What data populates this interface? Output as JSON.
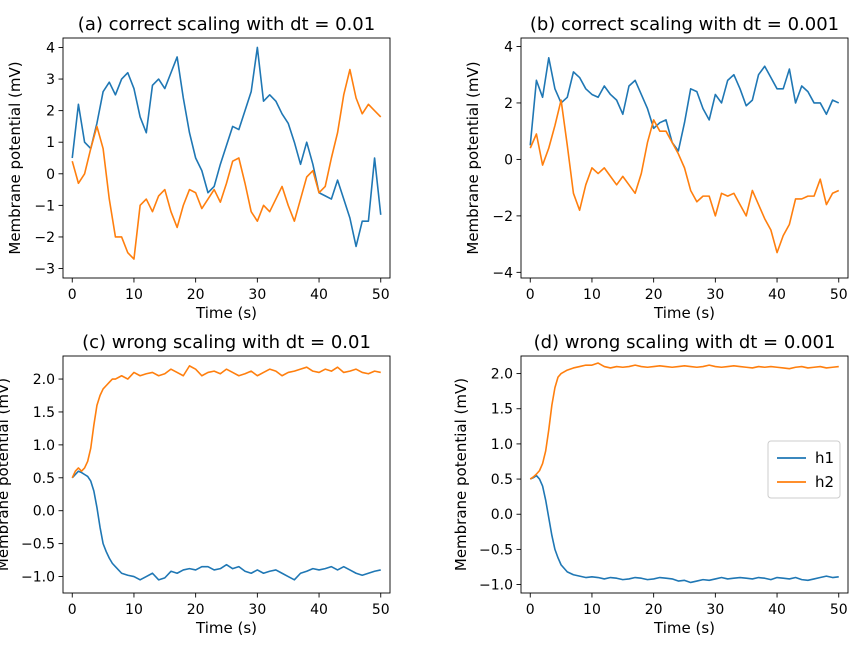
{
  "colors": {
    "h1": "#1f77b4",
    "h2": "#ff7f0e"
  },
  "chart_data": [
    {
      "type": "line",
      "title": "(a) correct scaling with dt = 0.01",
      "xlabel": "Time (s)",
      "ylabel": "Membrane potential (mV)",
      "xlim": [
        -1.5,
        51.5
      ],
      "ylim": [
        -3.3,
        4.3
      ],
      "xticks": [
        0,
        10,
        20,
        30,
        40,
        50
      ],
      "yticks": [
        -3,
        -2,
        -1,
        0,
        1,
        2,
        3,
        4
      ],
      "ytick_labels": [
        "−3",
        "−2",
        "−1",
        "0",
        "1",
        "2",
        "3",
        "4"
      ],
      "legend": null,
      "series": [
        {
          "key": "h1",
          "x": [
            0,
            1,
            2,
            3,
            4,
            5,
            6,
            7,
            8,
            9,
            10,
            11,
            12,
            13,
            14,
            15,
            16,
            17,
            18,
            19,
            20,
            21,
            22,
            23,
            24,
            25,
            26,
            27,
            28,
            29,
            30,
            31,
            32,
            33,
            34,
            35,
            36,
            37,
            38,
            39,
            40,
            41,
            42,
            43,
            44,
            45,
            46,
            47,
            48,
            49,
            50
          ],
          "y": [
            0.5,
            2.2,
            1.0,
            0.8,
            1.6,
            2.6,
            2.9,
            2.5,
            3.0,
            3.2,
            2.7,
            1.8,
            1.3,
            2.8,
            3.0,
            2.7,
            3.2,
            3.7,
            2.4,
            1.3,
            0.5,
            0.1,
            -0.6,
            -0.4,
            0.3,
            0.9,
            1.5,
            1.4,
            2.0,
            2.6,
            4.0,
            2.3,
            2.5,
            2.3,
            1.9,
            1.6,
            1.0,
            0.3,
            1.0,
            0.3,
            -0.6,
            -0.7,
            -0.8,
            -0.2,
            -0.8,
            -1.4,
            -2.3,
            -1.5,
            -1.5,
            0.5,
            -1.3
          ]
        },
        {
          "key": "h2",
          "x": [
            0,
            1,
            2,
            3,
            4,
            5,
            6,
            7,
            8,
            9,
            10,
            11,
            12,
            13,
            14,
            15,
            16,
            17,
            18,
            19,
            20,
            21,
            22,
            23,
            24,
            25,
            26,
            27,
            28,
            29,
            30,
            31,
            32,
            33,
            34,
            35,
            36,
            37,
            38,
            39,
            40,
            41,
            42,
            43,
            44,
            45,
            46,
            47,
            48,
            49,
            50
          ],
          "y": [
            0.4,
            -0.3,
            0.0,
            0.8,
            1.5,
            0.8,
            -0.8,
            -2.0,
            -2.0,
            -2.5,
            -2.7,
            -1.0,
            -0.8,
            -1.2,
            -0.7,
            -0.5,
            -1.2,
            -1.7,
            -1.0,
            -0.5,
            -0.6,
            -1.1,
            -0.8,
            -0.5,
            -0.9,
            -0.3,
            0.4,
            0.5,
            -0.3,
            -1.2,
            -1.5,
            -1.0,
            -1.2,
            -0.8,
            -0.4,
            -1.0,
            -1.5,
            -0.8,
            -0.1,
            0.1,
            -0.6,
            -0.4,
            0.5,
            1.3,
            2.5,
            3.3,
            2.4,
            1.9,
            2.2,
            2.0,
            1.8
          ]
        }
      ]
    },
    {
      "type": "line",
      "title": "(b) correct scaling with dt = 0.001",
      "xlabel": "Time (s)",
      "ylabel": "Membrane potential (mV)",
      "xlim": [
        -1.5,
        51.5
      ],
      "ylim": [
        -4.2,
        4.3
      ],
      "xticks": [
        0,
        10,
        20,
        30,
        40,
        50
      ],
      "yticks": [
        -4,
        -2,
        0,
        2,
        4
      ],
      "ytick_labels": [
        "−4",
        "−2",
        "0",
        "2",
        "4"
      ],
      "legend": null,
      "series": [
        {
          "key": "h1",
          "x": [
            0,
            1,
            2,
            3,
            4,
            5,
            6,
            7,
            8,
            9,
            10,
            11,
            12,
            13,
            14,
            15,
            16,
            17,
            18,
            19,
            20,
            21,
            22,
            23,
            24,
            25,
            26,
            27,
            28,
            29,
            30,
            31,
            32,
            33,
            34,
            35,
            36,
            37,
            38,
            39,
            40,
            41,
            42,
            43,
            44,
            45,
            46,
            47,
            48,
            49,
            50
          ],
          "y": [
            0.5,
            2.8,
            2.2,
            3.6,
            2.5,
            2.0,
            2.2,
            3.1,
            2.9,
            2.5,
            2.3,
            2.2,
            2.6,
            2.3,
            2.1,
            1.6,
            2.6,
            2.8,
            2.3,
            1.8,
            1.1,
            1.3,
            1.4,
            0.6,
            0.3,
            1.3,
            2.5,
            2.4,
            1.8,
            1.4,
            2.3,
            2.0,
            2.8,
            3.0,
            2.5,
            1.9,
            2.1,
            3.0,
            3.3,
            2.9,
            2.5,
            2.5,
            3.2,
            2.0,
            2.6,
            2.4,
            2.0,
            2.0,
            1.6,
            2.1,
            2.0
          ]
        },
        {
          "key": "h2",
          "x": [
            0,
            1,
            2,
            3,
            4,
            5,
            6,
            7,
            8,
            9,
            10,
            11,
            12,
            13,
            14,
            15,
            16,
            17,
            18,
            19,
            20,
            21,
            22,
            23,
            24,
            25,
            26,
            27,
            28,
            29,
            30,
            31,
            32,
            33,
            34,
            35,
            36,
            37,
            38,
            39,
            40,
            41,
            42,
            43,
            44,
            45,
            46,
            47,
            48,
            49,
            50
          ],
          "y": [
            0.4,
            0.9,
            -0.2,
            0.4,
            1.2,
            2.1,
            0.5,
            -1.2,
            -1.8,
            -0.9,
            -0.3,
            -0.5,
            -0.3,
            -0.6,
            -0.9,
            -0.6,
            -0.9,
            -1.2,
            -0.5,
            0.6,
            1.4,
            1.0,
            1.0,
            0.6,
            0.2,
            -0.3,
            -1.1,
            -1.5,
            -1.3,
            -1.3,
            -2.0,
            -1.2,
            -1.3,
            -1.2,
            -1.6,
            -2.0,
            -1.1,
            -1.6,
            -2.1,
            -2.5,
            -3.3,
            -2.7,
            -2.3,
            -1.4,
            -1.4,
            -1.3,
            -1.3,
            -0.7,
            -1.6,
            -1.2,
            -1.1
          ]
        }
      ]
    },
    {
      "type": "line",
      "title": "(c) wrong scaling with dt = 0.01",
      "xlabel": "Time (s)",
      "ylabel": "Membrane potential (mV)",
      "xlim": [
        -1.5,
        51.5
      ],
      "ylim": [
        -1.25,
        2.35
      ],
      "xticks": [
        0,
        10,
        20,
        30,
        40,
        50
      ],
      "yticks": [
        -1.0,
        -0.5,
        0.0,
        0.5,
        1.0,
        1.5,
        2.0
      ],
      "ytick_labels": [
        "−1.0",
        "−0.5",
        "0.0",
        "0.5",
        "1.0",
        "1.5",
        "2.0"
      ],
      "legend": null,
      "series": [
        {
          "key": "h1",
          "x": [
            0,
            0.5,
            1,
            1.5,
            2,
            2.5,
            3,
            3.5,
            4,
            4.5,
            5,
            5.5,
            6,
            6.5,
            7,
            8,
            9,
            10,
            11,
            12,
            13,
            14,
            15,
            16,
            17,
            18,
            19,
            20,
            21,
            22,
            23,
            24,
            25,
            26,
            27,
            28,
            29,
            30,
            31,
            32,
            33,
            34,
            35,
            36,
            37,
            38,
            39,
            40,
            41,
            42,
            43,
            44,
            45,
            46,
            47,
            48,
            49,
            50
          ],
          "y": [
            0.5,
            0.55,
            0.6,
            0.58,
            0.55,
            0.52,
            0.45,
            0.3,
            0.05,
            -0.25,
            -0.5,
            -0.62,
            -0.72,
            -0.8,
            -0.85,
            -0.95,
            -0.98,
            -1.0,
            -1.05,
            -1.0,
            -0.95,
            -1.05,
            -1.02,
            -0.92,
            -0.95,
            -0.9,
            -0.88,
            -0.9,
            -0.85,
            -0.85,
            -0.9,
            -0.88,
            -0.82,
            -0.88,
            -0.85,
            -0.92,
            -0.95,
            -0.9,
            -0.95,
            -0.92,
            -0.9,
            -0.95,
            -1.0,
            -1.05,
            -0.95,
            -0.92,
            -0.88,
            -0.9,
            -0.88,
            -0.85,
            -0.9,
            -0.85,
            -0.9,
            -0.95,
            -0.98,
            -0.95,
            -0.92,
            -0.9
          ]
        },
        {
          "key": "h2",
          "x": [
            0,
            0.5,
            1,
            1.5,
            2,
            2.5,
            3,
            3.5,
            4,
            4.5,
            5,
            5.5,
            6,
            6.5,
            7,
            8,
            9,
            10,
            11,
            12,
            13,
            14,
            15,
            16,
            17,
            18,
            19,
            20,
            21,
            22,
            23,
            24,
            25,
            26,
            27,
            28,
            29,
            30,
            31,
            32,
            33,
            34,
            35,
            36,
            37,
            38,
            39,
            40,
            41,
            42,
            43,
            44,
            45,
            46,
            47,
            48,
            49,
            50
          ],
          "y": [
            0.5,
            0.6,
            0.65,
            0.6,
            0.65,
            0.75,
            0.95,
            1.3,
            1.6,
            1.75,
            1.85,
            1.9,
            1.95,
            2.0,
            2.0,
            2.05,
            2.0,
            2.1,
            2.05,
            2.08,
            2.1,
            2.05,
            2.08,
            2.15,
            2.1,
            2.05,
            2.2,
            2.15,
            2.05,
            2.1,
            2.12,
            2.08,
            2.15,
            2.1,
            2.05,
            2.08,
            2.12,
            2.05,
            2.1,
            2.15,
            2.12,
            2.05,
            2.1,
            2.12,
            2.15,
            2.18,
            2.12,
            2.1,
            2.15,
            2.12,
            2.18,
            2.1,
            2.12,
            2.15,
            2.1,
            2.08,
            2.12,
            2.1
          ]
        }
      ]
    },
    {
      "type": "line",
      "title": "(d) wrong scaling with dt = 0.001",
      "xlabel": "Time (s)",
      "ylabel": "Membrane potential (mV)",
      "xlim": [
        -1.5,
        51.5
      ],
      "ylim": [
        -1.12,
        2.25
      ],
      "xticks": [
        0,
        10,
        20,
        30,
        40,
        50
      ],
      "yticks": [
        -1.0,
        -0.5,
        0.0,
        0.5,
        1.0,
        1.5,
        2.0
      ],
      "ytick_labels": [
        "−1.0",
        "−0.5",
        "0.0",
        "0.5",
        "1.0",
        "1.5",
        "2.0"
      ],
      "legend": {
        "location": "center right",
        "entries": [
          {
            "key": "h1",
            "label": "h1"
          },
          {
            "key": "h2",
            "label": "h2"
          }
        ]
      },
      "series": [
        {
          "key": "h1",
          "x": [
            0,
            0.5,
            1,
            1.5,
            2,
            2.5,
            3,
            3.5,
            4,
            4.5,
            5,
            6,
            7,
            8,
            9,
            10,
            11,
            12,
            13,
            14,
            15,
            16,
            17,
            18,
            19,
            20,
            21,
            22,
            23,
            24,
            25,
            26,
            27,
            28,
            29,
            30,
            31,
            32,
            33,
            34,
            35,
            36,
            37,
            38,
            39,
            40,
            41,
            42,
            43,
            44,
            45,
            46,
            47,
            48,
            49,
            50
          ],
          "y": [
            0.5,
            0.52,
            0.55,
            0.5,
            0.4,
            0.2,
            -0.05,
            -0.3,
            -0.5,
            -0.62,
            -0.72,
            -0.82,
            -0.86,
            -0.88,
            -0.9,
            -0.89,
            -0.9,
            -0.92,
            -0.9,
            -0.91,
            -0.93,
            -0.92,
            -0.9,
            -0.91,
            -0.93,
            -0.92,
            -0.9,
            -0.91,
            -0.92,
            -0.95,
            -0.94,
            -0.97,
            -0.95,
            -0.93,
            -0.94,
            -0.92,
            -0.9,
            -0.92,
            -0.91,
            -0.9,
            -0.91,
            -0.92,
            -0.9,
            -0.91,
            -0.93,
            -0.9,
            -0.91,
            -0.92,
            -0.9,
            -0.93,
            -0.94,
            -0.92,
            -0.9,
            -0.88,
            -0.9,
            -0.89
          ]
        },
        {
          "key": "h2",
          "x": [
            0,
            0.5,
            1,
            1.5,
            2,
            2.5,
            3,
            3.5,
            4,
            4.5,
            5,
            6,
            7,
            8,
            9,
            10,
            11,
            12,
            13,
            14,
            15,
            16,
            17,
            18,
            19,
            20,
            21,
            22,
            23,
            24,
            25,
            26,
            27,
            28,
            29,
            30,
            31,
            32,
            33,
            34,
            35,
            36,
            37,
            38,
            39,
            40,
            41,
            42,
            43,
            44,
            45,
            46,
            47,
            48,
            49,
            50
          ],
          "y": [
            0.5,
            0.53,
            0.57,
            0.62,
            0.72,
            0.9,
            1.2,
            1.55,
            1.8,
            1.95,
            2.0,
            2.05,
            2.08,
            2.1,
            2.12,
            2.12,
            2.15,
            2.1,
            2.08,
            2.1,
            2.09,
            2.1,
            2.12,
            2.1,
            2.09,
            2.1,
            2.11,
            2.1,
            2.09,
            2.1,
            2.11,
            2.1,
            2.09,
            2.1,
            2.12,
            2.1,
            2.09,
            2.1,
            2.11,
            2.1,
            2.09,
            2.08,
            2.1,
            2.09,
            2.1,
            2.09,
            2.08,
            2.07,
            2.09,
            2.1,
            2.08,
            2.09,
            2.1,
            2.08,
            2.09,
            2.1
          ]
        }
      ]
    }
  ]
}
